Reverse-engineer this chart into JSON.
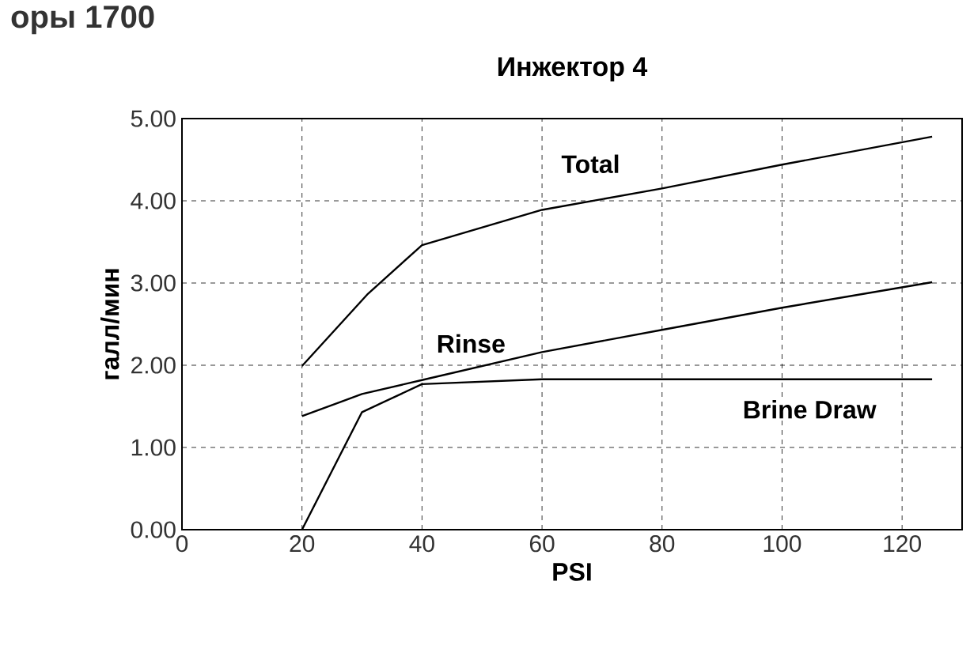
{
  "chart_data": {
    "type": "line",
    "title": "Инжектор 4",
    "xlabel": "PSI",
    "ylabel": "галл/мин",
    "annotations": [
      "оры 1700"
    ],
    "xlim": [
      0,
      130
    ],
    "xticks": [
      0,
      20,
      40,
      60,
      80,
      100,
      120
    ],
    "ylim": [
      0,
      5
    ],
    "yticks": [
      {
        "value": 0,
        "label": "0.00"
      },
      {
        "value": 1,
        "label": "1.00"
      },
      {
        "value": 2,
        "label": "2.00"
      },
      {
        "value": 3,
        "label": "3.00"
      },
      {
        "value": 4,
        "label": "4.00"
      },
      {
        "value": 5,
        "label": "5.00"
      }
    ],
    "grid": true,
    "legend": false,
    "marker": "none",
    "line_style": "solid",
    "series": [
      {
        "name": "Total",
        "color": "#000000",
        "x": [
          20,
          31,
          40,
          60,
          80,
          100,
          125
        ],
        "values": [
          1.99,
          2.87,
          3.46,
          3.89,
          4.15,
          4.44,
          4.78
        ]
      },
      {
        "name": "Rinse",
        "color": "#000000",
        "x": [
          20,
          30,
          40,
          60,
          80,
          100,
          125
        ],
        "values": [
          1.38,
          1.65,
          1.82,
          2.16,
          2.43,
          2.7,
          3.01
        ]
      },
      {
        "name": "Brine Draw",
        "color": "#000000",
        "x": [
          20,
          30,
          40,
          60,
          125
        ],
        "values": [
          0,
          1.43,
          1.77,
          1.83,
          1.83
        ]
      }
    ]
  }
}
